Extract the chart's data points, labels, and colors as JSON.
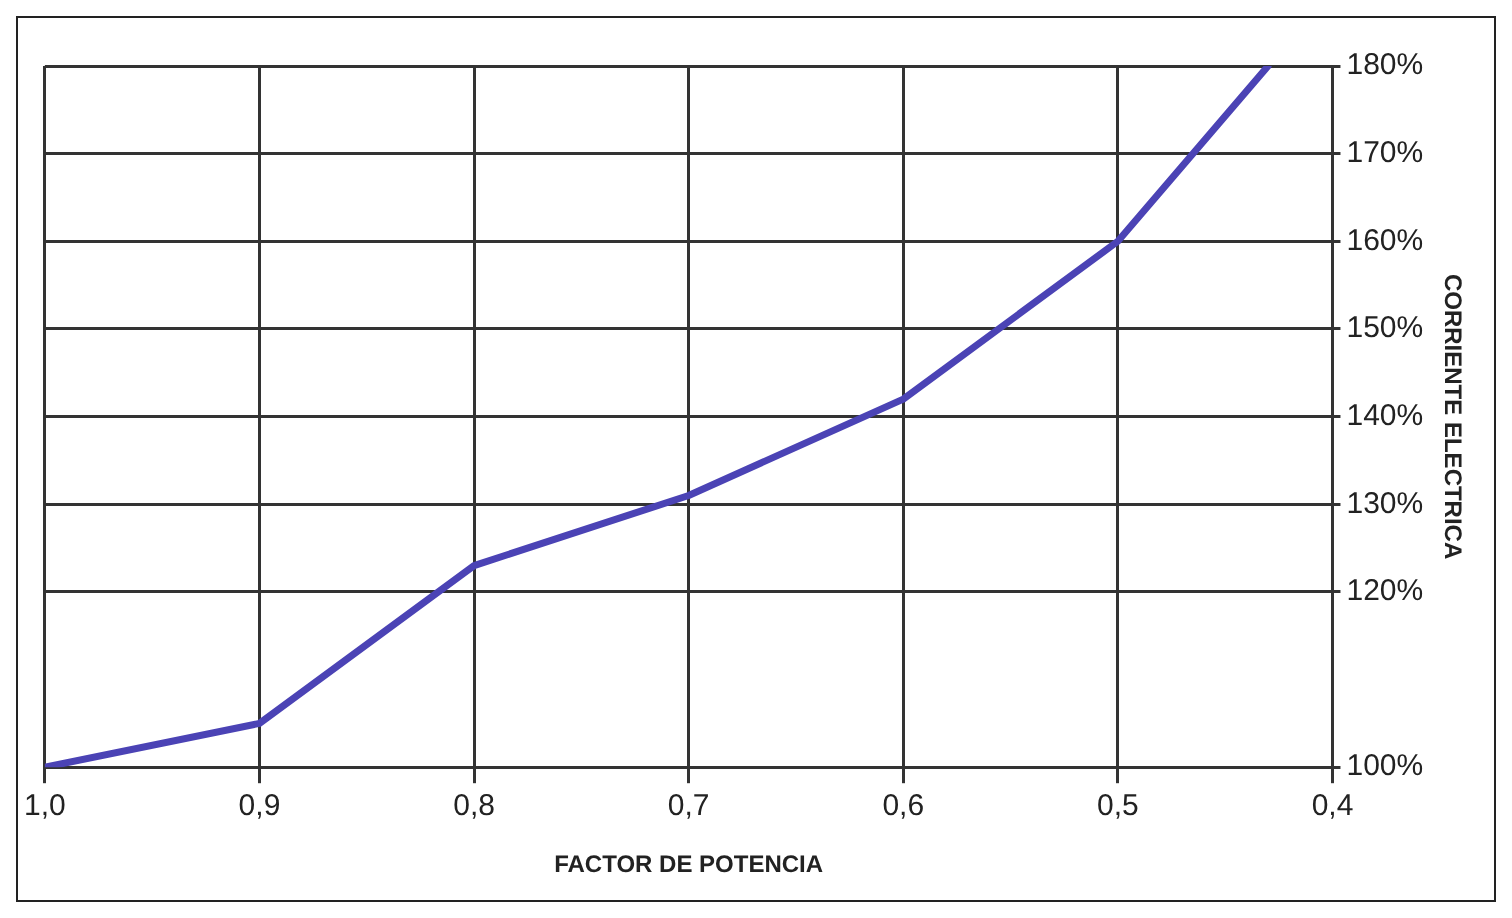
{
  "chart_data": {
    "type": "line",
    "xlabel": "FACTOR DE POTENCIA",
    "ylabel": "CORRIENTE ELECTRICA",
    "x": [
      1.0,
      0.9,
      0.8,
      0.7,
      0.6,
      0.5,
      0.43
    ],
    "series": [
      {
        "color": "#4b43b5",
        "values": [
          100,
          105,
          123,
          131,
          142,
          160,
          180
        ]
      }
    ],
    "xlim": [
      1.0,
      0.4
    ],
    "xticks": [
      {
        "value": 1.0,
        "label": "1,0"
      },
      {
        "value": 0.9,
        "label": "0,9"
      },
      {
        "value": 0.8,
        "label": "0,8"
      },
      {
        "value": 0.7,
        "label": "0,7"
      },
      {
        "value": 0.6,
        "label": "0,6"
      },
      {
        "value": 0.5,
        "label": "0,5"
      },
      {
        "value": 0.4,
        "label": "0,4"
      }
    ],
    "ylim": [
      100,
      180
    ],
    "yticks": [
      {
        "value": 100,
        "label": "100%"
      },
      {
        "value": 120,
        "label": "120%"
      },
      {
        "value": 130,
        "label": "130%"
      },
      {
        "value": 140,
        "label": "140%"
      },
      {
        "value": 150,
        "label": "150%"
      },
      {
        "value": 160,
        "label": "160%"
      },
      {
        "value": 170,
        "label": "170%"
      },
      {
        "value": 180,
        "label": "180%"
      }
    ],
    "grid": true,
    "legend": false,
    "marker": "none",
    "line_style": "solid"
  }
}
